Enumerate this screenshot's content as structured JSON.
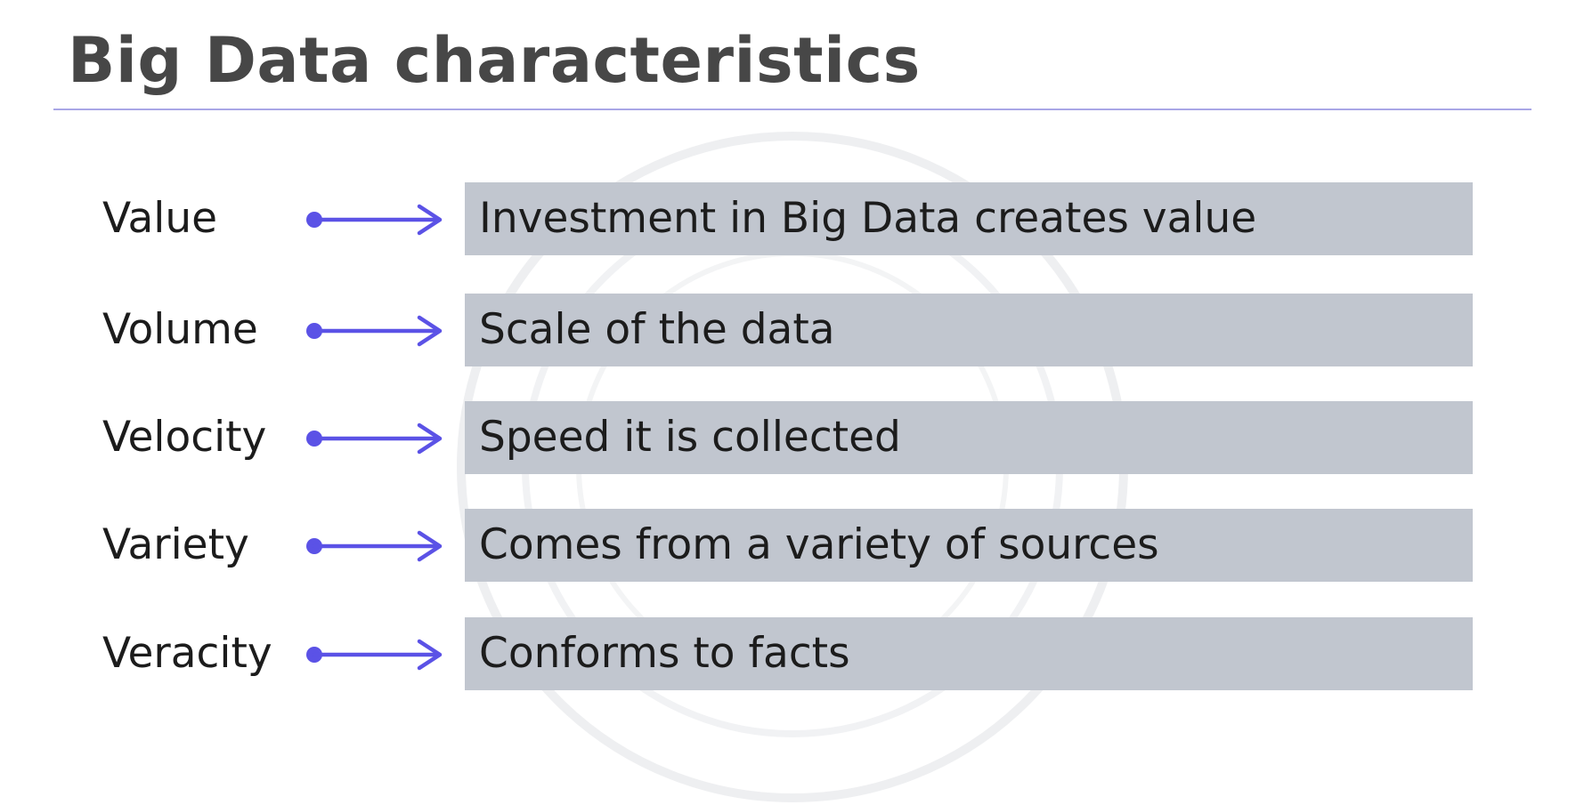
{
  "title": "Big Data characteristics",
  "colors": {
    "title_text": "#474747",
    "divider": "#a9a7e6",
    "arrow": "#5b52e6",
    "box_fill": "#c1c6cf",
    "watermark": "#eeeff1"
  },
  "watermark": {
    "icon": "big-data-logo-icon"
  },
  "characteristics": [
    {
      "term": "Value",
      "description": "Investment in Big Data creates value"
    },
    {
      "term": "Volume",
      "description": "Scale of the data"
    },
    {
      "term": "Velocity",
      "description": "Speed it is collected"
    },
    {
      "term": "Variety",
      "description": "Comes from a variety of sources"
    },
    {
      "term": "Veracity",
      "description": "Conforms to facts"
    }
  ]
}
